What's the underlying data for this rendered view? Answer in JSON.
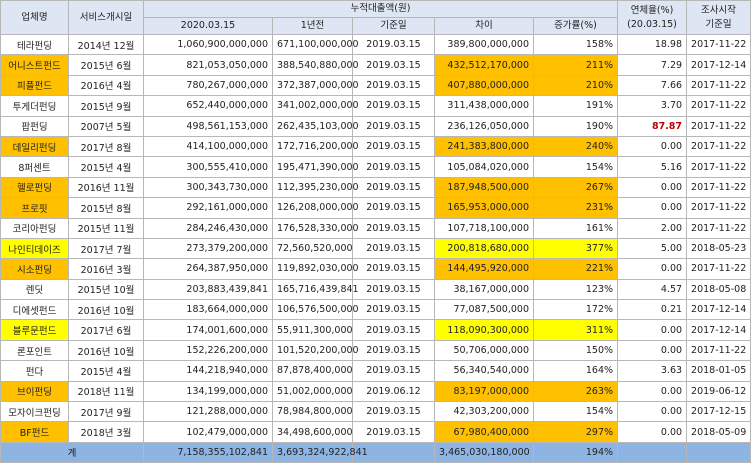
{
  "table": {
    "header_top": [
      {
        "lines": [
          "업체명"
        ]
      },
      {
        "lines": [
          "서비스개시일"
        ]
      },
      {
        "lines": [
          "누적대출액(원)"
        ]
      },
      {
        "lines": [
          "연체율(%)",
          "(20.03.15)"
        ]
      },
      {
        "lines": [
          "조사시작",
          "기준일"
        ]
      }
    ],
    "header_sub": [
      "2020.03.15",
      "1년전",
      "기준일",
      "차이",
      "증가률(%)"
    ],
    "rows": [
      {
        "cells": [
          "테라펀딩",
          "2014년 12월",
          "1,060,900,000,000",
          "671,100,000,000",
          "2019.03.15",
          "389,800,000,000",
          "158%",
          "18.98",
          "2017-11-22"
        ]
      },
      {
        "cells": [
          "어니스트펀드",
          "2015년 6월",
          "821,053,050,000",
          "388,540,880,000",
          "2019.03.15",
          "432,512,170,000",
          "211%",
          "7.29",
          "2017-12-14"
        ],
        "highlight": "#ffc000"
      },
      {
        "cells": [
          "피플펀드",
          "2016년 4월",
          "780,267,000,000",
          "372,387,000,000",
          "2019.03.15",
          "407,880,000,000",
          "210%",
          "7.66",
          "2017-11-22"
        ],
        "highlight": "#ffc000"
      },
      {
        "cells": [
          "투게더펀딩",
          "2015년 9월",
          "652,440,000,000",
          "341,002,000,000",
          "2019.03.15",
          "311,438,000,000",
          "191%",
          "3.70",
          "2017-11-22"
        ]
      },
      {
        "cells": [
          "팝펀딩",
          "2007년 5월",
          "498,561,153,000",
          "262,435,103,000",
          "2019.03.15",
          "236,126,050,000",
          "190%",
          "87.87",
          "2017-11-22"
        ],
        "overdue_color": "#c00000"
      },
      {
        "cells": [
          "데일리펀딩",
          "2017년 8월",
          "414,100,000,000",
          "172,716,200,000",
          "2019.03.15",
          "241,383,800,000",
          "240%",
          "0.00",
          "2017-11-22"
        ],
        "highlight": "#ffc000"
      },
      {
        "cells": [
          "8퍼센트",
          "2015년 4월",
          "300,555,410,000",
          "195,471,390,000",
          "2019.03.15",
          "105,084,020,000",
          "154%",
          "5.16",
          "2017-11-22"
        ]
      },
      {
        "cells": [
          "헬로펀딩",
          "2016년 11월",
          "300,343,730,000",
          "112,395,230,000",
          "2019.03.15",
          "187,948,500,000",
          "267%",
          "0.00",
          "2017-11-22"
        ],
        "highlight": "#ffc000"
      },
      {
        "cells": [
          "프로핏",
          "2015년 8월",
          "292,161,000,000",
          "126,208,000,000",
          "2019.03.15",
          "165,953,000,000",
          "231%",
          "0.00",
          "2017-11-22"
        ],
        "highlight": "#ffc000"
      },
      {
        "cells": [
          "코리아펀딩",
          "2015년 11월",
          "284,246,430,000",
          "176,528,330,000",
          "2019.03.15",
          "107,718,100,000",
          "161%",
          "2.00",
          "2017-11-22"
        ]
      },
      {
        "cells": [
          "나인티데이즈",
          "2017년 7월",
          "273,379,200,000",
          "72,560,520,000",
          "2019.03.15",
          "200,818,680,000",
          "377%",
          "5.00",
          "2018-05-23"
        ],
        "highlight": "#ffff00"
      },
      {
        "cells": [
          "시소펀딩",
          "2016년 3월",
          "264,387,950,000",
          "119,892,030,000",
          "2019.03.15",
          "144,495,920,000",
          "221%",
          "0.00",
          "2017-11-22"
        ],
        "highlight": "#ffc000"
      },
      {
        "cells": [
          "렌딧",
          "2015년 10월",
          "203,883,439,841",
          "165,716,439,841",
          "2019.03.15",
          "38,167,000,000",
          "123%",
          "4.57",
          "2018-05-08"
        ]
      },
      {
        "cells": [
          "디에셋펀드",
          "2016년 10월",
          "183,664,000,000",
          "106,576,500,000",
          "2019.03.15",
          "77,087,500,000",
          "172%",
          "0.21",
          "2017-12-14"
        ]
      },
      {
        "cells": [
          "블루문펀드",
          "2017년 6월",
          "174,001,600,000",
          "55,911,300,000",
          "2019.03.15",
          "118,090,300,000",
          "311%",
          "0.00",
          "2017-12-14"
        ],
        "highlight": "#ffff00"
      },
      {
        "cells": [
          "론포인트",
          "2016년 10월",
          "152,226,200,000",
          "101,520,200,000",
          "2019.03.15",
          "50,706,000,000",
          "150%",
          "0.00",
          "2017-11-22"
        ]
      },
      {
        "cells": [
          "펀다",
          "2015년 4월",
          "144,218,940,000",
          "87,878,400,000",
          "2019.03.15",
          "56,340,540,000",
          "164%",
          "3.63",
          "2018-01-05"
        ]
      },
      {
        "cells": [
          "브이펀딩",
          "2018년 11월",
          "134,199,000,000",
          "51,002,000,000",
          "2019.06.12",
          "83,197,000,000",
          "263%",
          "0.00",
          "2019-06-12"
        ],
        "highlight": "#ffc000"
      },
      {
        "cells": [
          "모자이크펀딩",
          "2017년 9월",
          "121,288,000,000",
          "78,984,800,000",
          "2019.03.15",
          "42,303,200,000",
          "154%",
          "0.00",
          "2017-12-15"
        ]
      },
      {
        "cells": [
          "BF펀드",
          "2018년 3월",
          "102,479,000,000",
          "34,498,600,000",
          "2019.03.15",
          "67,980,400,000",
          "297%",
          "0.00",
          "2018-05-09"
        ],
        "highlight": "#ffc000"
      }
    ],
    "total": {
      "label": "계",
      "loan_now": "7,158,355,102,841",
      "loan_year_ago": "3,693,324,922,841",
      "difference": "3,465,030,180,000",
      "growth": "194%"
    }
  }
}
